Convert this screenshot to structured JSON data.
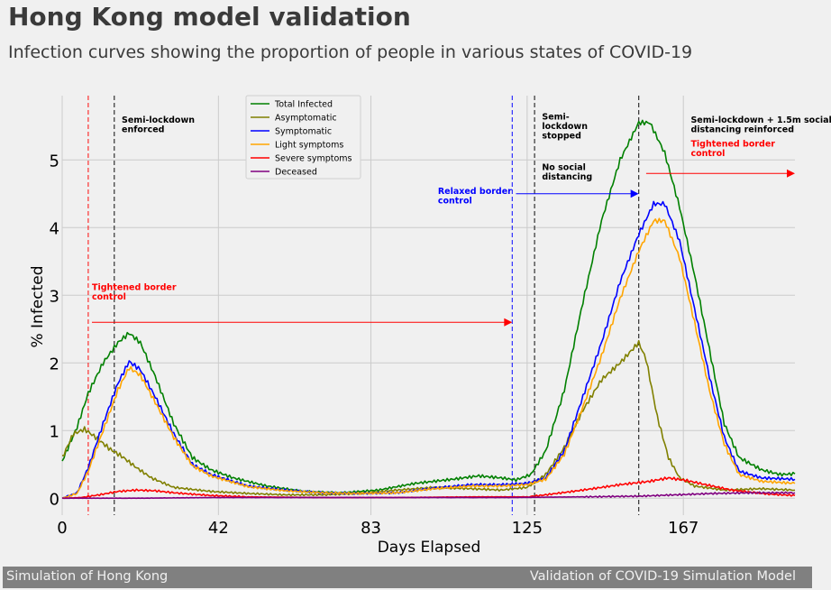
{
  "header": {
    "title": "Hong Kong model validation",
    "subtitle": "Infection curves showing the proportion of people in various states of COVID-19"
  },
  "footer": {
    "left": "Simulation of Hong Kong",
    "right": "Validation of COVID-19 Simulation Model"
  },
  "chart_data": {
    "type": "line",
    "xlabel": "Days Elapsed",
    "ylabel": "% Infected",
    "xlim": [
      0,
      197
    ],
    "ylim": [
      -0.25,
      5.95
    ],
    "xticks": [
      0,
      42,
      83,
      125,
      167
    ],
    "yticks": [
      0,
      1,
      2,
      3,
      4,
      5
    ],
    "grid": true,
    "legend_position": "top-center",
    "series": [
      {
        "name": "Total Infected",
        "color": "#008000",
        "points": [
          [
            0,
            0.55
          ],
          [
            4,
            1.05
          ],
          [
            7,
            1.55
          ],
          [
            11,
            2.0
          ],
          [
            15,
            2.3
          ],
          [
            18,
            2.44
          ],
          [
            21,
            2.3
          ],
          [
            25,
            1.8
          ],
          [
            30,
            1.1
          ],
          [
            35,
            0.6
          ],
          [
            40,
            0.42
          ],
          [
            46,
            0.3
          ],
          [
            55,
            0.18
          ],
          [
            65,
            0.1
          ],
          [
            75,
            0.08
          ],
          [
            85,
            0.12
          ],
          [
            95,
            0.22
          ],
          [
            105,
            0.28
          ],
          [
            112,
            0.33
          ],
          [
            118,
            0.3
          ],
          [
            122,
            0.27
          ],
          [
            126,
            0.35
          ],
          [
            130,
            0.7
          ],
          [
            135,
            1.6
          ],
          [
            140,
            2.9
          ],
          [
            145,
            4.1
          ],
          [
            150,
            5.0
          ],
          [
            155,
            5.55
          ],
          [
            158,
            5.55
          ],
          [
            162,
            5.1
          ],
          [
            166,
            4.3
          ],
          [
            170,
            3.3
          ],
          [
            174,
            2.2
          ],
          [
            178,
            1.1
          ],
          [
            182,
            0.6
          ],
          [
            188,
            0.42
          ],
          [
            193,
            0.35
          ],
          [
            197,
            0.36
          ]
        ]
      },
      {
        "name": "Asymptomatic",
        "color": "#808000",
        "points": [
          [
            0,
            0.6
          ],
          [
            3,
            0.95
          ],
          [
            6,
            1.02
          ],
          [
            9,
            0.9
          ],
          [
            13,
            0.72
          ],
          [
            16,
            0.62
          ],
          [
            20,
            0.45
          ],
          [
            24,
            0.3
          ],
          [
            30,
            0.16
          ],
          [
            40,
            0.1
          ],
          [
            50,
            0.07
          ],
          [
            60,
            0.05
          ],
          [
            70,
            0.05
          ],
          [
            80,
            0.07
          ],
          [
            90,
            0.12
          ],
          [
            100,
            0.16
          ],
          [
            110,
            0.14
          ],
          [
            118,
            0.12
          ],
          [
            125,
            0.16
          ],
          [
            130,
            0.35
          ],
          [
            135,
            0.75
          ],
          [
            140,
            1.3
          ],
          [
            145,
            1.75
          ],
          [
            150,
            2.0
          ],
          [
            155,
            2.3
          ],
          [
            157,
            2.05
          ],
          [
            160,
            1.2
          ],
          [
            163,
            0.6
          ],
          [
            166,
            0.3
          ],
          [
            170,
            0.18
          ],
          [
            178,
            0.12
          ],
          [
            188,
            0.14
          ],
          [
            197,
            0.12
          ]
        ]
      },
      {
        "name": "Symptomatic",
        "color": "#0000ff",
        "points": [
          [
            0,
            0.0
          ],
          [
            4,
            0.08
          ],
          [
            7,
            0.45
          ],
          [
            11,
            1.1
          ],
          [
            15,
            1.7
          ],
          [
            18,
            2.02
          ],
          [
            21,
            1.9
          ],
          [
            25,
            1.5
          ],
          [
            30,
            0.95
          ],
          [
            35,
            0.5
          ],
          [
            40,
            0.35
          ],
          [
            50,
            0.18
          ],
          [
            60,
            0.12
          ],
          [
            70,
            0.08
          ],
          [
            80,
            0.07
          ],
          [
            90,
            0.08
          ],
          [
            100,
            0.15
          ],
          [
            110,
            0.2
          ],
          [
            118,
            0.2
          ],
          [
            125,
            0.22
          ],
          [
            130,
            0.3
          ],
          [
            135,
            0.7
          ],
          [
            140,
            1.5
          ],
          [
            145,
            2.3
          ],
          [
            150,
            3.2
          ],
          [
            155,
            3.9
          ],
          [
            159,
            4.35
          ],
          [
            162,
            4.35
          ],
          [
            166,
            3.8
          ],
          [
            170,
            2.8
          ],
          [
            174,
            1.8
          ],
          [
            178,
            0.9
          ],
          [
            182,
            0.4
          ],
          [
            188,
            0.3
          ],
          [
            197,
            0.28
          ]
        ]
      },
      {
        "name": "Light symptoms",
        "color": "#ffa500",
        "points": [
          [
            0,
            0.0
          ],
          [
            4,
            0.07
          ],
          [
            7,
            0.4
          ],
          [
            11,
            1.0
          ],
          [
            15,
            1.6
          ],
          [
            18,
            1.93
          ],
          [
            21,
            1.82
          ],
          [
            25,
            1.42
          ],
          [
            30,
            0.9
          ],
          [
            35,
            0.48
          ],
          [
            40,
            0.33
          ],
          [
            50,
            0.17
          ],
          [
            60,
            0.11
          ],
          [
            70,
            0.08
          ],
          [
            80,
            0.07
          ],
          [
            90,
            0.08
          ],
          [
            100,
            0.14
          ],
          [
            110,
            0.18
          ],
          [
            118,
            0.18
          ],
          [
            125,
            0.2
          ],
          [
            130,
            0.28
          ],
          [
            135,
            0.65
          ],
          [
            140,
            1.35
          ],
          [
            145,
            2.1
          ],
          [
            150,
            2.95
          ],
          [
            155,
            3.65
          ],
          [
            159,
            4.1
          ],
          [
            162,
            4.1
          ],
          [
            166,
            3.55
          ],
          [
            170,
            2.6
          ],
          [
            174,
            1.6
          ],
          [
            178,
            0.8
          ],
          [
            182,
            0.35
          ],
          [
            188,
            0.25
          ],
          [
            197,
            0.22
          ]
        ]
      },
      {
        "name": "Severe symptoms",
        "color": "#ff0000",
        "points": [
          [
            0,
            0.0
          ],
          [
            5,
            0.01
          ],
          [
            10,
            0.05
          ],
          [
            15,
            0.1
          ],
          [
            20,
            0.12
          ],
          [
            25,
            0.11
          ],
          [
            30,
            0.08
          ],
          [
            40,
            0.04
          ],
          [
            50,
            0.02
          ],
          [
            70,
            0.01
          ],
          [
            90,
            0.01
          ],
          [
            110,
            0.02
          ],
          [
            125,
            0.02
          ],
          [
            130,
            0.05
          ],
          [
            140,
            0.12
          ],
          [
            150,
            0.2
          ],
          [
            158,
            0.25
          ],
          [
            163,
            0.3
          ],
          [
            168,
            0.26
          ],
          [
            173,
            0.2
          ],
          [
            180,
            0.12
          ],
          [
            190,
            0.06
          ],
          [
            197,
            0.04
          ]
        ]
      },
      {
        "name": "Deceased",
        "color": "#800080",
        "points": [
          [
            0,
            0.0
          ],
          [
            20,
            0.0
          ],
          [
            40,
            0.01
          ],
          [
            60,
            0.01
          ],
          [
            90,
            0.01
          ],
          [
            120,
            0.01
          ],
          [
            140,
            0.02
          ],
          [
            155,
            0.03
          ],
          [
            165,
            0.05
          ],
          [
            175,
            0.07
          ],
          [
            185,
            0.08
          ],
          [
            197,
            0.08
          ]
        ]
      }
    ],
    "vlines": [
      {
        "x": 7,
        "color": "#ff0000"
      },
      {
        "x": 14,
        "color": "#000000"
      },
      {
        "x": 121,
        "color": "#0000ff"
      },
      {
        "x": 127,
        "color": "#000000"
      },
      {
        "x": 155,
        "color": "#000000"
      }
    ],
    "annotations": [
      {
        "text": [
          "Semi-lockdown",
          "enforced"
        ],
        "x": 16,
        "y": 5.55,
        "color": "#000000"
      },
      {
        "text": [
          "Tightened border",
          "control"
        ],
        "x": 8,
        "y": 3.08,
        "color": "#ff0000"
      },
      {
        "text": [
          "Relaxed border",
          "control"
        ],
        "x": 101,
        "y": 4.5,
        "color": "#0000ff"
      },
      {
        "text": [
          "Semi-",
          "lockdown",
          "stopped"
        ],
        "x": 129,
        "y": 5.6,
        "color": "#000000"
      },
      {
        "text": [
          "No social",
          "distancing"
        ],
        "x": 129,
        "y": 4.85,
        "color": "#000000"
      },
      {
        "text": [
          "Semi-lockdown + 1.5m social",
          "distancing reinforced"
        ],
        "x": 169,
        "y": 5.55,
        "color": "#000000"
      },
      {
        "text": [
          "Tightened border",
          "control"
        ],
        "x": 169,
        "y": 5.2,
        "color": "#ff0000"
      }
    ],
    "arrows": [
      {
        "from": [
          8,
          2.6
        ],
        "to": [
          121,
          2.6
        ],
        "color": "#ff0000"
      },
      {
        "from": [
          122,
          4.5
        ],
        "to": [
          155,
          4.5
        ],
        "color": "#0000ff"
      },
      {
        "from": [
          157,
          4.8
        ],
        "to": [
          197,
          4.8
        ],
        "color": "#ff0000"
      }
    ]
  }
}
